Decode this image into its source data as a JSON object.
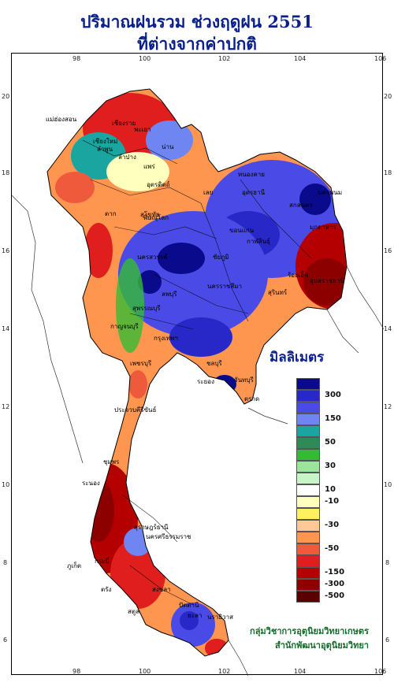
{
  "title_line1": "ปริมาณฝนรวม ช่วงฤดูฝน 2551",
  "title_line2": "ที่ต่างจากค่าปกติ",
  "legend": {
    "title": "มิลลิเมตร",
    "labels": [
      "300",
      "150",
      "50",
      "30",
      "10",
      "-10",
      "-30",
      "-50",
      "-150",
      "-300",
      "-500"
    ],
    "colors": [
      "#0a0a8c",
      "#2828c8",
      "#4a4ae6",
      "#6f86f2",
      "#1aa5a0",
      "#2e8b57",
      "#33bb33",
      "#9be59b",
      "#c8f5c8",
      "#ffffff",
      "#ffffbe",
      "#fff060",
      "#ffc896",
      "#ff9650",
      "#f05a3c",
      "#e01e1e",
      "#b40000",
      "#8c0000",
      "#5a0000"
    ]
  },
  "axis": {
    "x_ticks": [
      "98",
      "100",
      "102",
      "104",
      "106"
    ],
    "y_ticks": [
      "20",
      "18",
      "16",
      "14",
      "12",
      "10",
      "8",
      "6"
    ]
  },
  "credit_line1": "กลุ่มวิชาการอุตุนิยมวิทยาเกษตร",
  "credit_line2": "สำนักพัฒนาอุตุนิยมวิทยา",
  "places": [
    "เชียงราย",
    "พะเยา",
    "เชียงใหม่",
    "ลำพูน",
    "ลำปาง",
    "แพร่",
    "น่าน",
    "อุตรดิตถ์",
    "แม่ฮ่องสอน",
    "ตาก",
    "สุโขทัย",
    "พิษณุโลก",
    "เลย",
    "หนองคาย",
    "อุดรธานี",
    "นครพนม",
    "สกลนคร",
    "มุกดาหาร",
    "ขอนแก่น",
    "กาฬสินธุ์",
    "ร้อยเอ็ด",
    "อุบลราชธานี",
    "ชัยภูมิ",
    "นครราชสีมา",
    "สุรินทร์",
    "นครสวรรค์",
    "ลพบุรี",
    "สุพรรณบุรี",
    "กาญจนบุรี",
    "กรุงเทพฯ",
    "ชลบุรี",
    "ระยอง",
    "จันทบุรี",
    "ตราด",
    "เพชรบุรี",
    "ประจวบคีรีขันธ์",
    "ชุมพร",
    "ระนอง",
    "สุราษฎร์ธานี",
    "นครศรีธรรมราช",
    "ภูเก็ต",
    "กระบี่",
    "ตรัง",
    "สงขลา",
    "สตูล",
    "ปัตตานี",
    "ยะลา",
    "นราธิวาส"
  ]
}
